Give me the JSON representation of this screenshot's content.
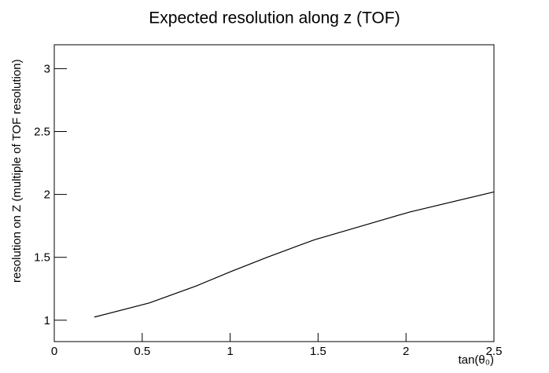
{
  "chart_data": {
    "type": "line",
    "title": "Expected resolution along z (TOF)",
    "xlabel": "tan(θ₀)",
    "ylabel": "resolution on Z (multiple of TOF resolution)",
    "x": [
      0.228,
      0.54,
      0.81,
      1.01,
      1.21,
      1.48,
      1.75,
      2.02,
      2.5
    ],
    "values": [
      1.025,
      1.137,
      1.274,
      1.39,
      1.5,
      1.64,
      1.75,
      1.86,
      2.02
    ],
    "color": "#000000",
    "xlim": [
      0,
      2.5
    ],
    "xticks": [
      0,
      0.5,
      1,
      1.5,
      2,
      2.5
    ],
    "ylim": [
      0.83,
      3.19
    ],
    "yticks": [
      1,
      1.5,
      2,
      2.5,
      3
    ]
  }
}
